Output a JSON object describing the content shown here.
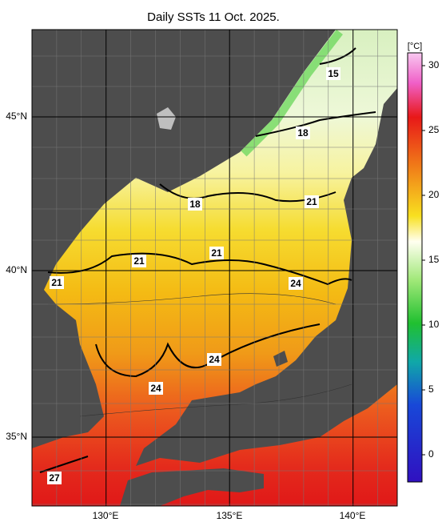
{
  "title": "Daily SSTs 11 Oct. 2025.",
  "x_axis_labels": [
    "130°E",
    "135°E",
    "140°E"
  ],
  "y_axis_labels": [
    "45°N",
    "40°N",
    "35°N"
  ],
  "colorbar": {
    "unit": "[°C]",
    "ticks": [
      30,
      25,
      20,
      15,
      10,
      5,
      0
    ]
  },
  "contour_labels": [
    "15",
    "18",
    "18",
    "21",
    "21",
    "21",
    "21",
    "24",
    "24",
    "24",
    "27"
  ]
}
